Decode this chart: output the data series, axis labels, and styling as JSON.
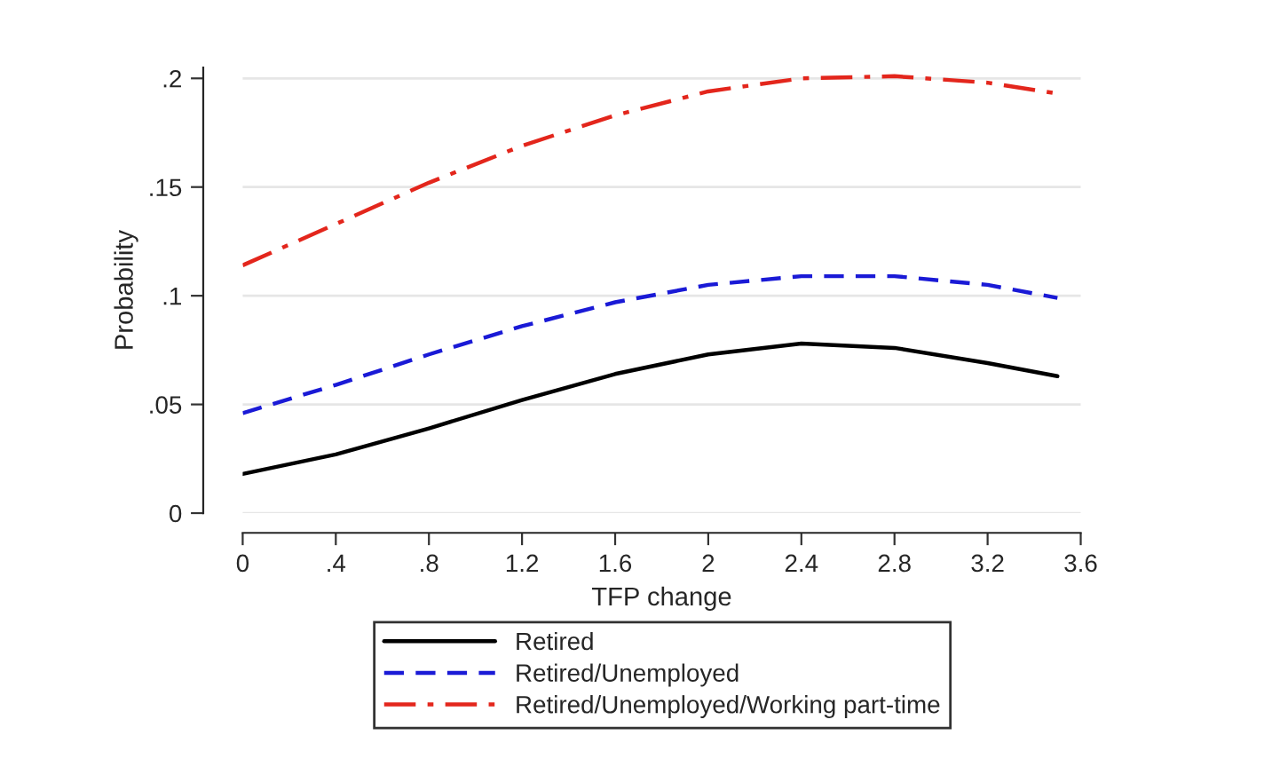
{
  "chart_data": {
    "type": "line",
    "xlabel": "TFP change",
    "ylabel": "Probability",
    "x": [
      0,
      0.4,
      0.8,
      1.2,
      1.6,
      2.0,
      2.4,
      2.8,
      3.2,
      3.5
    ],
    "series": [
      {
        "name": "Retired",
        "color": "#000000",
        "line_style": "solid",
        "values": [
          0.018,
          0.027,
          0.039,
          0.052,
          0.064,
          0.073,
          0.078,
          0.076,
          0.069,
          0.063
        ]
      },
      {
        "name": "Retired/Unemployed",
        "color": "#1a1ad6",
        "line_style": "dashed",
        "values": [
          0.046,
          0.059,
          0.073,
          0.086,
          0.097,
          0.105,
          0.109,
          0.109,
          0.105,
          0.099
        ]
      },
      {
        "name": "Retired/Unemployed/Working part-time",
        "color": "#e3261c",
        "line_style": "dashdot",
        "values": [
          0.114,
          0.133,
          0.152,
          0.169,
          0.183,
          0.194,
          0.2,
          0.201,
          0.198,
          0.193
        ]
      }
    ],
    "xlim": [
      0,
      3.6
    ],
    "ylim": [
      0,
      0.205
    ],
    "xticks": [
      0,
      {
        "value": 0.4,
        "label": ".4"
      },
      {
        "value": 0.8,
        "label": ".8"
      },
      1.2,
      1.6,
      2,
      2.4,
      2.8,
      3.2,
      3.6
    ],
    "yticks": [
      0,
      {
        "value": 0.05,
        "label": ".05"
      },
      {
        "value": 0.1,
        "label": ".1"
      },
      {
        "value": 0.15,
        "label": ".15"
      },
      {
        "value": 0.2,
        "label": ".2"
      }
    ],
    "grid": "y",
    "legend": "bottom",
    "marker": "none"
  }
}
